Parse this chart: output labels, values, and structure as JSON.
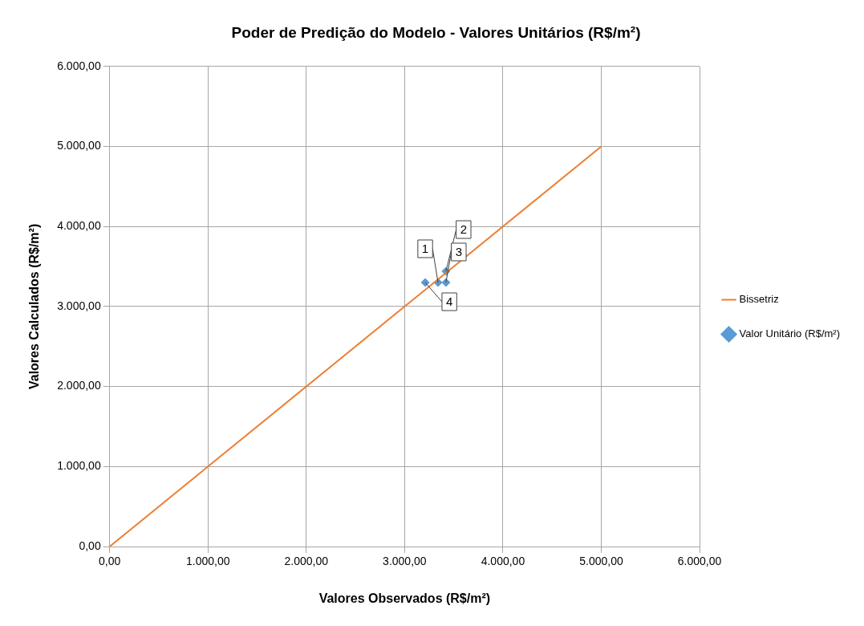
{
  "chart_data": {
    "type": "scatter",
    "title": "Poder de Predição do Modelo - Valores Unitários (R$/m²)",
    "xlabel": "Valores Observados (R$/m²)",
    "ylabel": "Valores Calculados (R$/m²)",
    "xlim": [
      0,
      6000
    ],
    "ylim": [
      0,
      6000
    ],
    "xticks": [
      {
        "value": 0,
        "label": "0,00"
      },
      {
        "value": 1000,
        "label": "1.000,00"
      },
      {
        "value": 2000,
        "label": "2.000,00"
      },
      {
        "value": 3000,
        "label": "3.000,00"
      },
      {
        "value": 4000,
        "label": "4.000,00"
      },
      {
        "value": 5000,
        "label": "5.000,00"
      },
      {
        "value": 6000,
        "label": "6.000,00"
      }
    ],
    "yticks": [
      {
        "value": 0,
        "label": "0,00"
      },
      {
        "value": 1000,
        "label": "1.000,00"
      },
      {
        "value": 2000,
        "label": "2.000,00"
      },
      {
        "value": 3000,
        "label": "3.000,00"
      },
      {
        "value": 4000,
        "label": "4.000,00"
      },
      {
        "value": 5000,
        "label": "5.000,00"
      },
      {
        "value": 6000,
        "label": "6.000,00"
      }
    ],
    "grid": true,
    "legend": "right",
    "annotations": [
      {
        "text": "1",
        "x": 3340,
        "y": 3300
      },
      {
        "text": "2",
        "x": 3420,
        "y": 3440
      },
      {
        "text": "3",
        "x": 3420,
        "y": 3300
      },
      {
        "text": "4",
        "x": 3210,
        "y": 3300
      }
    ],
    "series": [
      {
        "name": "Bissetriz",
        "type": "line",
        "color": "#ed7d31",
        "x": [
          0,
          5000
        ],
        "values": [
          0,
          5000
        ],
        "marker": "none",
        "line_style": "solid"
      },
      {
        "name": "Valor Unitário (R$/m²)",
        "type": "scatter",
        "color": "#5b9bd5",
        "x": [
          3340,
          3420,
          3420,
          3210
        ],
        "values": [
          3300,
          3440,
          3300,
          3300
        ],
        "marker": "diamond"
      }
    ]
  }
}
